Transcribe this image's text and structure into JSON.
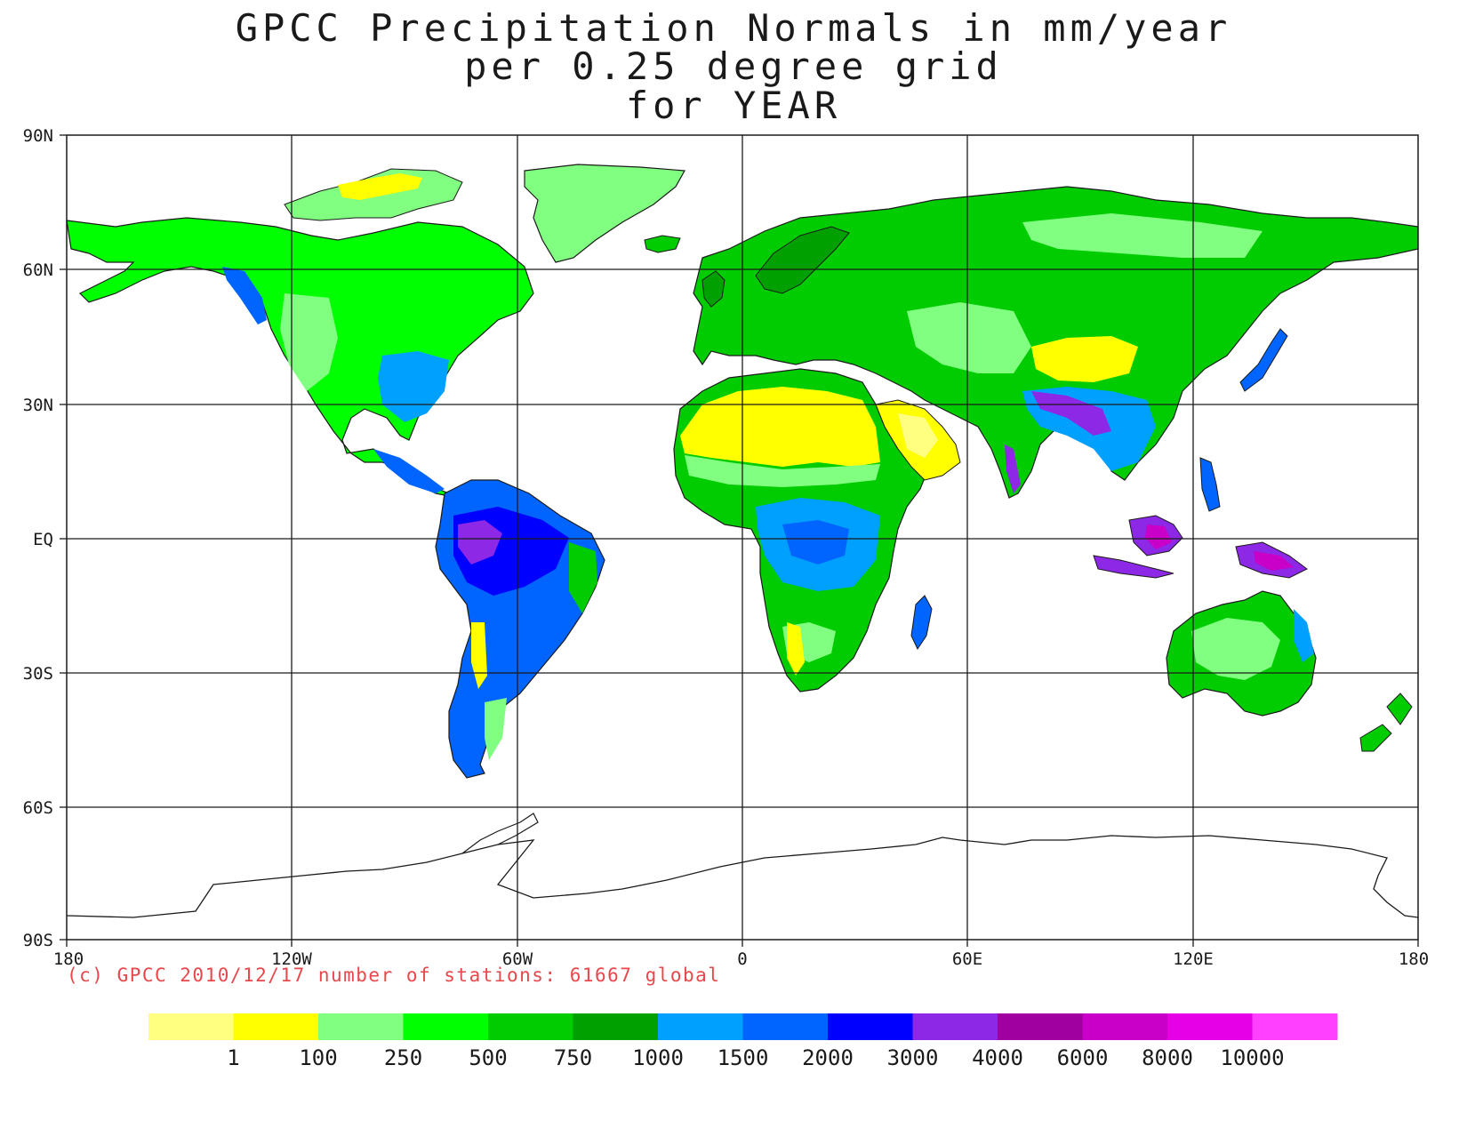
{
  "title": {
    "line1": "GPCC Precipitation Normals in mm/year",
    "line2": "per 0.25 degree grid",
    "line3": "for YEAR"
  },
  "credit": "(c) GPCC 2010/12/17 number of stations: 61667 global",
  "axes": {
    "lon_ticks": [
      "180",
      "120W",
      "60W",
      "0",
      "60E",
      "120E",
      "180"
    ],
    "lat_ticks": [
      "90N",
      "60N",
      "30N",
      "EQ",
      "30S",
      "60S",
      "90S"
    ]
  },
  "legend": {
    "colors": [
      "#ffff80",
      "#ffff00",
      "#80ff80",
      "#00ff00",
      "#00cc00",
      "#00a000",
      "#00a0ff",
      "#0064ff",
      "#0000ff",
      "#8c28e6",
      "#a000a0",
      "#c800c8",
      "#e600e6",
      "#ff40ff"
    ],
    "labels": [
      "1",
      "100",
      "250",
      "500",
      "750",
      "1000",
      "1500",
      "2000",
      "3000",
      "4000",
      "6000",
      "8000",
      "10000"
    ]
  },
  "colors": {
    "desert_yellow": "#ffff00",
    "dry_light_green": "#80ff80",
    "green": "#00ff00",
    "mid_green": "#00cc00",
    "dark_green": "#00a000",
    "light_blue": "#00a0ff",
    "blue": "#0064ff",
    "deep_blue": "#0000ff",
    "purple": "#8c28e6",
    "magenta": "#c800c8",
    "credit_red": "#e8474b"
  }
}
